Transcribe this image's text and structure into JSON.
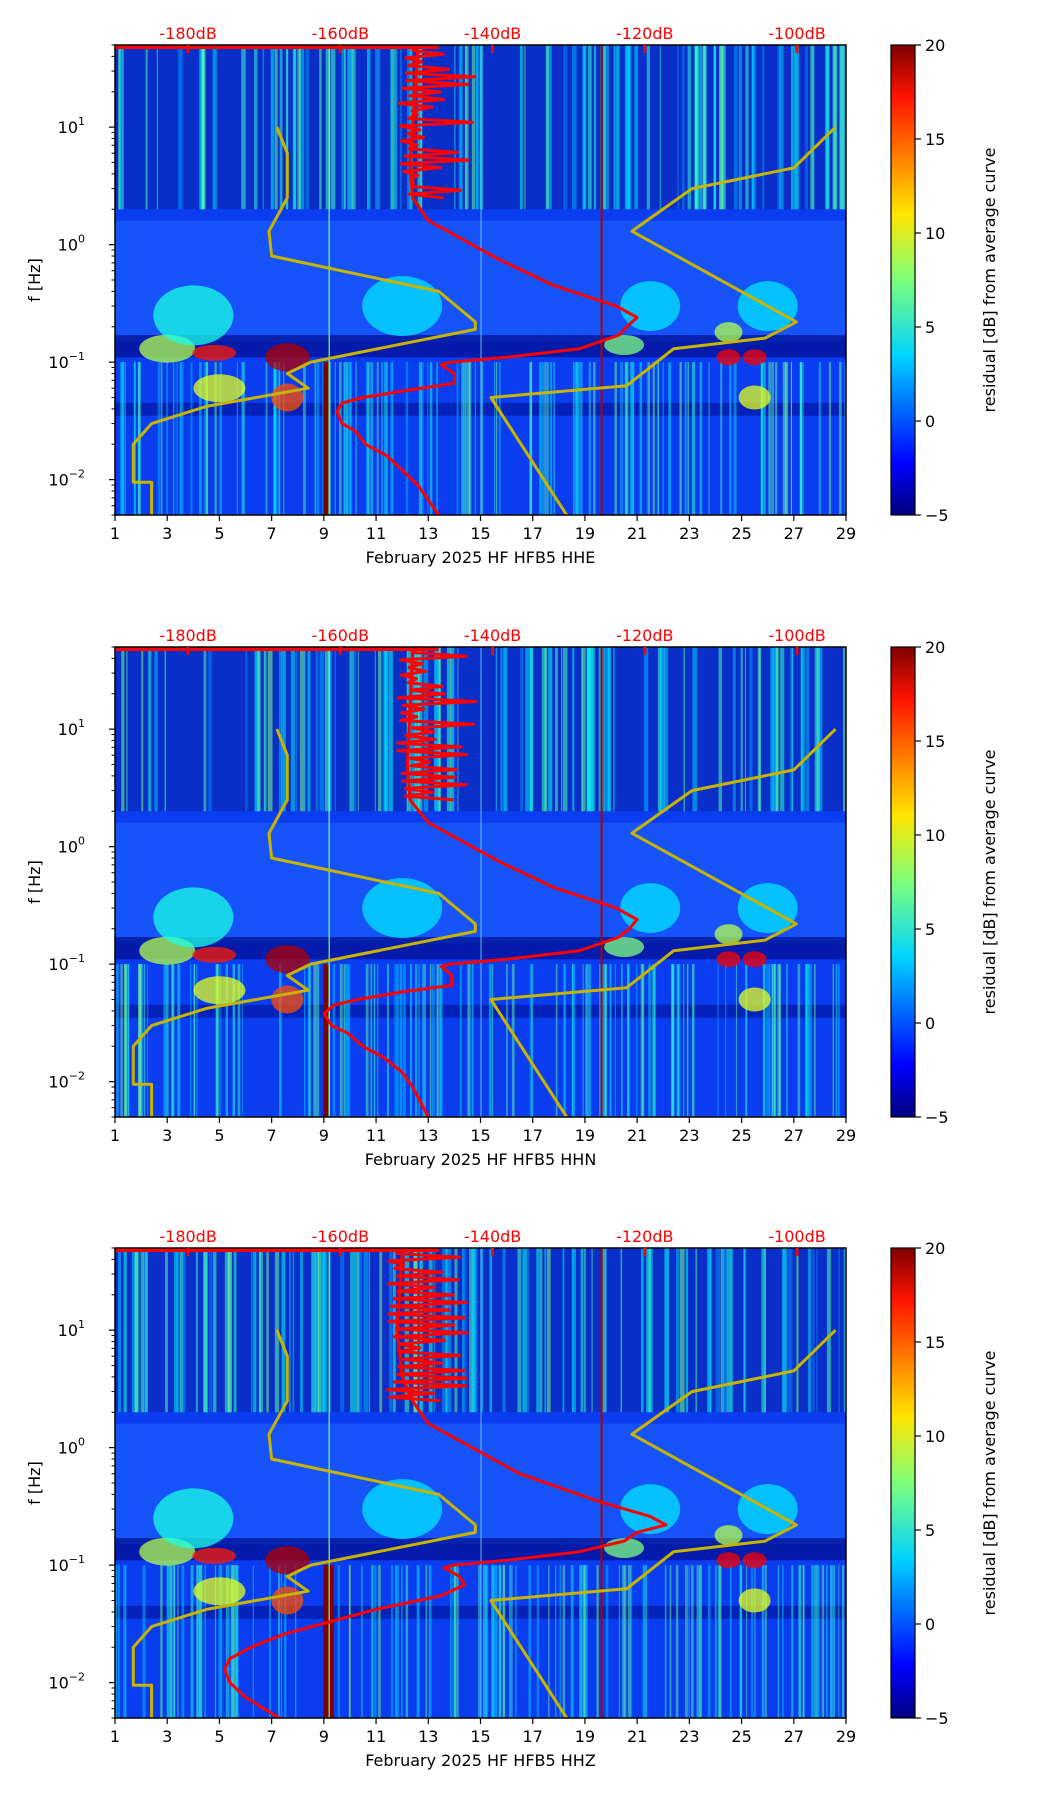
{
  "chart_data": [
    {
      "type": "heatmap",
      "title": "",
      "xlabel": "February 2025 HF HFB5  HHE",
      "ylabel": "f [Hz]",
      "xlim": [
        1,
        29
      ],
      "ylim": [
        0.005,
        50
      ],
      "yscale": "log",
      "x_ticks": [
        "1",
        "3",
        "5",
        "7",
        "9",
        "11",
        "13",
        "15",
        "17",
        "19",
        "21",
        "23",
        "25",
        "27",
        "29"
      ],
      "y_ticks": [
        {
          "base": "10",
          "exp": "1",
          "value": 10
        },
        {
          "base": "10",
          "exp": "0",
          "value": 1
        },
        {
          "base": "10",
          "exp": "−1",
          "value": 0.1
        },
        {
          "base": "10",
          "exp": "−2",
          "value": 0.01
        }
      ],
      "db_ticks": [
        "-180dB",
        "-160dB",
        "-140dB",
        "-120dB",
        "-100dB"
      ],
      "colorbar": {
        "label": "residual [dB] from average curve",
        "range": [
          -5,
          20
        ],
        "ticks": [
          "20",
          "15",
          "10",
          "5",
          "0",
          "−5"
        ],
        "colormap": "jet"
      },
      "noise_model_curve_x": [
        2.4,
        2.4,
        1.7,
        1.7,
        2.4,
        4.5,
        8.4,
        7.6,
        8.5,
        14.8,
        14.8,
        13.4,
        7.0,
        6.9,
        7.6,
        7.6,
        7.2
      ],
      "noise_model_curve_y": [
        0.005,
        0.0095,
        0.0095,
        0.02,
        0.03,
        0.042,
        0.06,
        0.08,
        0.1,
        0.19,
        0.22,
        0.4,
        0.8,
        1.3,
        2.5,
        6.0,
        10
      ],
      "noise_model_curve2_x": [
        18.3,
        15.4,
        20.6,
        22.4,
        25.9,
        27.1,
        20.8,
        23.1,
        27.0,
        28.6
      ],
      "noise_model_curve2_y": [
        0.005,
        0.05,
        0.063,
        0.13,
        0.16,
        0.22,
        1.3,
        3.0,
        4.5,
        10
      ],
      "mean_psd_x": [
        13.4,
        12.6,
        12.0,
        11.4,
        10.6,
        10.2,
        9.7,
        9.5,
        9.7,
        10.5,
        12.3,
        14.0,
        14.0,
        13.5,
        13.9,
        16.0,
        18.8,
        20.3,
        20.6,
        21.0,
        20.2,
        17.8,
        15.7,
        13.0,
        12.4,
        12.3,
        12.6
      ],
      "mean_psd_y": [
        0.005,
        0.009,
        0.012,
        0.016,
        0.02,
        0.026,
        0.03,
        0.038,
        0.045,
        0.05,
        0.058,
        0.066,
        0.08,
        0.095,
        0.1,
        0.11,
        0.13,
        0.17,
        0.2,
        0.24,
        0.3,
        0.45,
        0.75,
        1.6,
        2.5,
        5,
        45
      ],
      "vertical_lines_x": [
        9.1,
        19.6
      ]
    },
    {
      "type": "heatmap",
      "title": "",
      "xlabel": "February 2025 HF HFB5  HHN",
      "ylabel": "f [Hz]",
      "xlim": [
        1,
        29
      ],
      "ylim": [
        0.005,
        50
      ],
      "yscale": "log",
      "x_ticks": [
        "1",
        "3",
        "5",
        "7",
        "9",
        "11",
        "13",
        "15",
        "17",
        "19",
        "21",
        "23",
        "25",
        "27",
        "29"
      ],
      "y_ticks": [
        {
          "base": "10",
          "exp": "1",
          "value": 10
        },
        {
          "base": "10",
          "exp": "0",
          "value": 1
        },
        {
          "base": "10",
          "exp": "−1",
          "value": 0.1
        },
        {
          "base": "10",
          "exp": "−2",
          "value": 0.01
        }
      ],
      "db_ticks": [
        "-180dB",
        "-160dB",
        "-140dB",
        "-120dB",
        "-100dB"
      ],
      "colorbar": {
        "label": "residual [dB] from average curve",
        "range": [
          -5,
          20
        ],
        "ticks": [
          "20",
          "15",
          "10",
          "5",
          "0",
          "−5"
        ],
        "colormap": "jet"
      },
      "noise_model_curve_x": [
        2.4,
        2.4,
        1.7,
        1.7,
        2.4,
        4.5,
        8.4,
        7.6,
        8.5,
        14.8,
        14.8,
        13.4,
        7.0,
        6.9,
        7.6,
        7.6,
        7.2
      ],
      "noise_model_curve_y": [
        0.005,
        0.0095,
        0.0095,
        0.02,
        0.03,
        0.042,
        0.06,
        0.08,
        0.1,
        0.19,
        0.22,
        0.4,
        0.8,
        1.3,
        2.5,
        6.0,
        10
      ],
      "noise_model_curve2_x": [
        18.3,
        15.4,
        20.6,
        22.4,
        25.9,
        27.1,
        20.8,
        23.1,
        27.0,
        28.6
      ],
      "noise_model_curve2_y": [
        0.005,
        0.05,
        0.063,
        0.13,
        0.16,
        0.22,
        1.3,
        3.0,
        4.5,
        10
      ],
      "mean_psd_x": [
        13.0,
        12.4,
        12.0,
        11.3,
        10.5,
        9.9,
        9.3,
        9.0,
        9.4,
        10.3,
        12.0,
        13.9,
        13.9,
        13.5,
        13.8,
        16.0,
        18.8,
        20.3,
        20.7,
        21.0,
        20.2,
        17.8,
        15.7,
        13.0,
        12.3,
        12.2,
        12.4
      ],
      "mean_psd_y": [
        0.005,
        0.009,
        0.012,
        0.016,
        0.02,
        0.026,
        0.03,
        0.038,
        0.045,
        0.05,
        0.058,
        0.066,
        0.08,
        0.095,
        0.1,
        0.11,
        0.13,
        0.17,
        0.2,
        0.24,
        0.3,
        0.45,
        0.75,
        1.6,
        2.5,
        5,
        45
      ],
      "vertical_lines_x": [
        9.1,
        19.6
      ]
    },
    {
      "type": "heatmap",
      "title": "",
      "xlabel": "February 2025 HF HFB5  HHZ",
      "ylabel": "f [Hz]",
      "xlim": [
        1,
        29
      ],
      "ylim": [
        0.005,
        50
      ],
      "yscale": "log",
      "x_ticks": [
        "1",
        "3",
        "5",
        "7",
        "9",
        "11",
        "13",
        "15",
        "17",
        "19",
        "21",
        "23",
        "25",
        "27",
        "29"
      ],
      "y_ticks": [
        {
          "base": "10",
          "exp": "1",
          "value": 10
        },
        {
          "base": "10",
          "exp": "0",
          "value": 1
        },
        {
          "base": "10",
          "exp": "−1",
          "value": 0.1
        },
        {
          "base": "10",
          "exp": "−2",
          "value": 0.01
        }
      ],
      "db_ticks": [
        "-180dB",
        "-160dB",
        "-140dB",
        "-120dB",
        "-100dB"
      ],
      "colorbar": {
        "label": "residual [dB] from average curve",
        "range": [
          -5,
          20
        ],
        "ticks": [
          "20",
          "15",
          "10",
          "5",
          "0",
          "−5"
        ],
        "colormap": "jet"
      },
      "noise_model_curve_x": [
        2.4,
        2.4,
        1.7,
        1.7,
        2.4,
        4.5,
        8.4,
        7.6,
        8.5,
        14.8,
        14.8,
        13.4,
        7.0,
        6.9,
        7.6,
        7.6,
        7.2
      ],
      "noise_model_curve_y": [
        0.005,
        0.0095,
        0.0095,
        0.02,
        0.03,
        0.042,
        0.06,
        0.08,
        0.1,
        0.19,
        0.22,
        0.4,
        0.8,
        1.3,
        2.5,
        6.0,
        10
      ],
      "noise_model_curve2_x": [
        18.3,
        15.4,
        20.6,
        22.4,
        25.9,
        27.1,
        20.8,
        23.1,
        27.0,
        28.6
      ],
      "noise_model_curve2_y": [
        0.005,
        0.05,
        0.063,
        0.13,
        0.16,
        0.22,
        1.3,
        3.0,
        4.5,
        10
      ],
      "mean_psd_x": [
        7.3,
        6.0,
        5.4,
        5.2,
        5.4,
        6.2,
        7.5,
        9.0,
        11.0,
        13.5,
        14.4,
        14.2,
        13.6,
        14.0,
        16.0,
        18.8,
        20.5,
        21.0,
        22.1,
        21.5,
        19.5,
        16.5,
        13.0,
        12.4,
        12.0,
        11.8,
        12.0
      ],
      "mean_psd_y": [
        0.005,
        0.0075,
        0.01,
        0.013,
        0.016,
        0.02,
        0.026,
        0.032,
        0.042,
        0.055,
        0.068,
        0.08,
        0.095,
        0.1,
        0.11,
        0.13,
        0.16,
        0.19,
        0.22,
        0.26,
        0.35,
        0.6,
        1.6,
        2.5,
        4,
        10,
        45
      ],
      "vertical_lines_x": [
        9.1,
        19.6
      ]
    }
  ]
}
